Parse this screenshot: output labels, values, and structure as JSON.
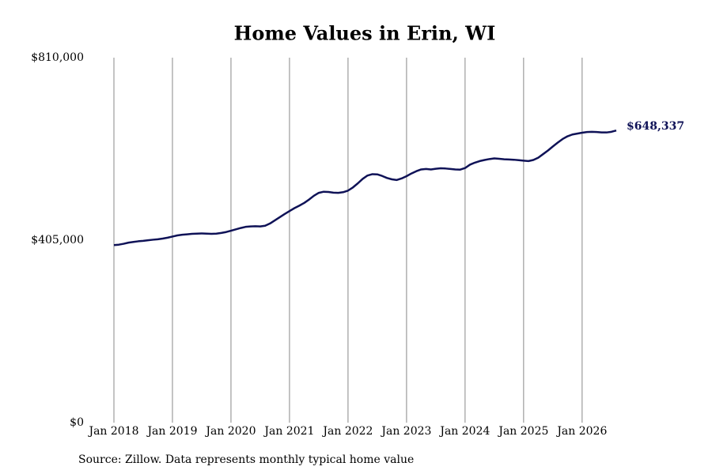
{
  "chart_data": {
    "type": "line",
    "title": "Home Values in Erin, WI",
    "source": "Source: Zillow. Data represents monthly typical home value",
    "color": "#0f1257",
    "grid": true,
    "xlim": [
      "2018-01",
      "2026-08"
    ],
    "ylim": [
      0,
      810000
    ],
    "yticks": [
      {
        "value": 0,
        "label": "$0"
      },
      {
        "value": 405000,
        "label": "$405,000"
      },
      {
        "value": 810000,
        "label": "$810,000"
      }
    ],
    "xticks": [
      {
        "value": "2018-01",
        "label": "Jan 2018"
      },
      {
        "value": "2019-01",
        "label": "Jan 2019"
      },
      {
        "value": "2020-01",
        "label": "Jan 2020"
      },
      {
        "value": "2021-01",
        "label": "Jan 2021"
      },
      {
        "value": "2022-01",
        "label": "Jan 2022"
      },
      {
        "value": "2023-01",
        "label": "Jan 2023"
      },
      {
        "value": "2024-01",
        "label": "Jan 2024"
      },
      {
        "value": "2025-01",
        "label": "Jan 2025"
      },
      {
        "value": "2026-01",
        "label": "Jan 2026"
      }
    ],
    "x": [
      "2018-01",
      "2018-02",
      "2018-03",
      "2018-04",
      "2018-05",
      "2018-06",
      "2018-07",
      "2018-08",
      "2018-09",
      "2018-10",
      "2018-11",
      "2018-12",
      "2019-01",
      "2019-02",
      "2019-03",
      "2019-04",
      "2019-05",
      "2019-06",
      "2019-07",
      "2019-08",
      "2019-09",
      "2019-10",
      "2019-11",
      "2019-12",
      "2020-01",
      "2020-02",
      "2020-03",
      "2020-04",
      "2020-05",
      "2020-06",
      "2020-07",
      "2020-08",
      "2020-09",
      "2020-10",
      "2020-11",
      "2020-12",
      "2021-01",
      "2021-02",
      "2021-03",
      "2021-04",
      "2021-05",
      "2021-06",
      "2021-07",
      "2021-08",
      "2021-09",
      "2021-10",
      "2021-11",
      "2021-12",
      "2022-01",
      "2022-02",
      "2022-03",
      "2022-04",
      "2022-05",
      "2022-06",
      "2022-07",
      "2022-08",
      "2022-09",
      "2022-10",
      "2022-11",
      "2022-12",
      "2023-01",
      "2023-02",
      "2023-03",
      "2023-04",
      "2023-05",
      "2023-06",
      "2023-07",
      "2023-08",
      "2023-09",
      "2023-10",
      "2023-11",
      "2023-12",
      "2024-01",
      "2024-02",
      "2024-03",
      "2024-04",
      "2024-05",
      "2024-06",
      "2024-07",
      "2024-08",
      "2024-09",
      "2024-10",
      "2024-11",
      "2024-12",
      "2025-01",
      "2025-02",
      "2025-03",
      "2025-04",
      "2025-05",
      "2025-06",
      "2025-07",
      "2025-08",
      "2025-09",
      "2025-10",
      "2025-11",
      "2025-12",
      "2026-01",
      "2026-02",
      "2026-03",
      "2026-04",
      "2026-05",
      "2026-06",
      "2026-07",
      "2026-08"
    ],
    "values": [
      394000,
      395000,
      397000,
      399500,
      401000,
      402500,
      403500,
      404800,
      406000,
      407000,
      408500,
      410500,
      413000,
      415500,
      417000,
      418000,
      419000,
      419500,
      420000,
      419500,
      419000,
      419500,
      421000,
      423000,
      426000,
      429000,
      432000,
      434500,
      435500,
      435800,
      435500,
      437000,
      442000,
      449000,
      456000,
      463000,
      469500,
      476000,
      481500,
      487500,
      495000,
      503500,
      510000,
      512500,
      512000,
      510500,
      510000,
      511500,
      515000,
      522000,
      531000,
      541000,
      548500,
      551500,
      551000,
      547500,
      543000,
      540000,
      538500,
      542000,
      547000,
      553000,
      558000,
      562000,
      563000,
      562000,
      563500,
      564500,
      564000,
      563000,
      562000,
      561500,
      565000,
      572500,
      577000,
      580500,
      583000,
      585000,
      586500,
      585500,
      584500,
      584000,
      583500,
      582500,
      581500,
      580500,
      583000,
      588000,
      596000,
      604000,
      613000,
      621500,
      629500,
      635500,
      639500,
      641500,
      643500,
      645000,
      645500,
      645000,
      644000,
      644000,
      645500,
      648337
    ],
    "value_labels": [
      null,
      null,
      null,
      null,
      null,
      null,
      null,
      null,
      null,
      null,
      null,
      null,
      null,
      null,
      null,
      null,
      null,
      null,
      null,
      null,
      null,
      null,
      null,
      null,
      null,
      null,
      null,
      null,
      null,
      null,
      null,
      null,
      null,
      null,
      null,
      null,
      null,
      null,
      null,
      null,
      null,
      null,
      null,
      null,
      null,
      null,
      null,
      null,
      null,
      null,
      null,
      null,
      null,
      null,
      null,
      null,
      null,
      null,
      null,
      null,
      null,
      null,
      null,
      null,
      null,
      null,
      null,
      null,
      null,
      null,
      null,
      null,
      null,
      null,
      null,
      null,
      null,
      null,
      null,
      null,
      null,
      null,
      null,
      null,
      null,
      null,
      null,
      null,
      null,
      null,
      null,
      null,
      null,
      null,
      null,
      null,
      null,
      null,
      null,
      null,
      null,
      null,
      null,
      "$648,337"
    ]
  }
}
